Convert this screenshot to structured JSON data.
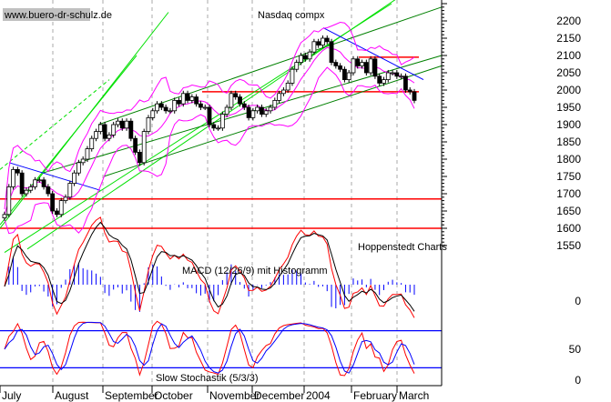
{
  "watermark": "www.buero-dr-schulz.de",
  "title": "Nasdaq compx",
  "source": "Hoppenstedt Charts",
  "macd_label": "MACD (12/26/9) mit Histogramm",
  "stoch_label": "Slow Stochastik (5/3/3)",
  "colors": {
    "candle": "#000000",
    "bollinger": "#ff00ff",
    "support": "#ff0000",
    "trend_down": "#0000ff",
    "trend_up_light": "#00e000",
    "trend_up_dark": "#008000",
    "macd": "#ff0000",
    "signal": "#000000",
    "histogram": "#0000ff",
    "stoch_k": "#ff0000",
    "stoch_d": "#0000ff",
    "grid": "#aaaaaa"
  },
  "chart_data": {
    "type": "candlestick",
    "title": "Nasdaq compx",
    "x_months": [
      "July",
      "August",
      "September",
      "October",
      "November",
      "December",
      "2004",
      "February",
      "March"
    ],
    "price_ticks": [
      2200,
      2150,
      2100,
      2050,
      2000,
      1950,
      1900,
      1850,
      1800,
      1750,
      1700,
      1650,
      1600,
      1550
    ],
    "ylim": [
      1530,
      2250
    ],
    "closes": [
      1640,
      1720,
      1770,
      1760,
      1700,
      1710,
      1720,
      1740,
      1740,
      1720,
      1700,
      1650,
      1640,
      1680,
      1690,
      1730,
      1760,
      1790,
      1800,
      1830,
      1860,
      1880,
      1900,
      1860,
      1870,
      1900,
      1910,
      1890,
      1910,
      1860,
      1820,
      1790,
      1880,
      1920,
      1940,
      1960,
      1950,
      1940,
      1940,
      1970,
      1960,
      1990,
      1970,
      1980,
      1960,
      1950,
      1950,
      1900,
      1890,
      1890,
      1930,
      1950,
      1990,
      1980,
      1960,
      1950,
      1920,
      1940,
      1950,
      1930,
      1940,
      1950,
      1970,
      1990,
      2000,
      2020,
      2060,
      2080,
      2100,
      2090,
      2110,
      2140,
      2130,
      2150,
      2140,
      2080,
      2070,
      2060,
      2030,
      2050,
      2090,
      2070,
      2080,
      2050,
      2090,
      2040,
      2020,
      2030,
      2050,
      2050,
      2040,
      2040,
      2000,
      1995,
      1970
    ],
    "horizontal_lines": [
      2095,
      1995,
      1685,
      1600
    ],
    "macd_ticks": [
      0
    ],
    "stoch_ticks": [
      50,
      0
    ],
    "stoch_levels": [
      80,
      20
    ]
  }
}
